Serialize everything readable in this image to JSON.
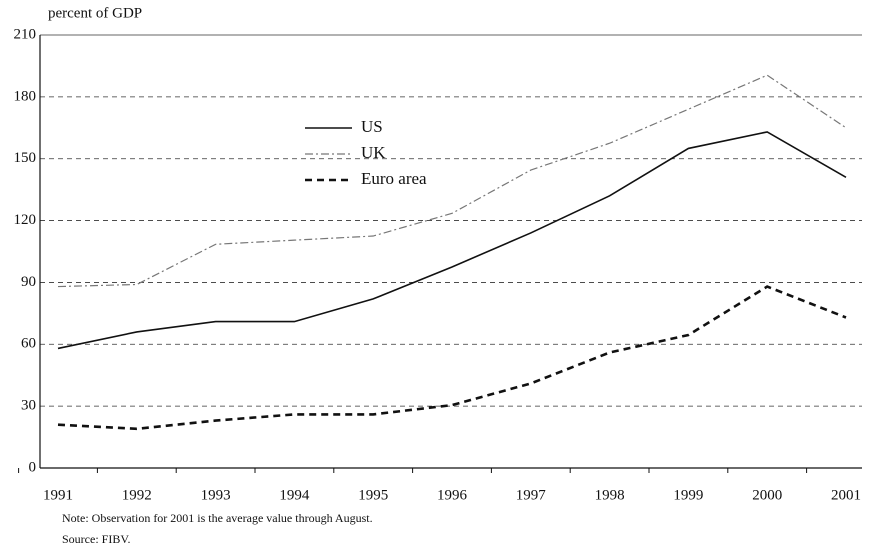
{
  "chart_data": {
    "type": "line",
    "y_label": "percent of GDP",
    "categories": [
      "1991",
      "1992",
      "1993",
      "1994",
      "1995",
      "1996",
      "1997",
      "1998",
      "1999",
      "2000",
      "2001"
    ],
    "series": [
      {
        "name": "US",
        "color": "#111111",
        "dash": "none",
        "width": 1.6,
        "values": [
          58,
          66,
          71,
          71,
          82,
          97.5,
          114,
          132,
          155,
          163,
          141
        ]
      },
      {
        "name": "UK",
        "color": "#777777",
        "dash": "8 3 2 3",
        "width": 1.2,
        "values": [
          88,
          89,
          108.5,
          110.5,
          112.5,
          123.5,
          144.5,
          157.5,
          174,
          190.5,
          165
        ]
      },
      {
        "name": "Euro area",
        "color": "#111111",
        "dash": "7 5",
        "width": 2.6,
        "values": [
          21,
          19,
          23,
          26,
          26,
          30.5,
          41,
          56,
          64.5,
          88,
          73
        ]
      }
    ],
    "ylim": [
      0,
      210
    ],
    "yticks": [
      0,
      30,
      60,
      90,
      120,
      150,
      180,
      210
    ],
    "grid": true,
    "notes": [
      "Note: Observation for 2001 is the average value through August.",
      "Source: FIBV."
    ]
  }
}
